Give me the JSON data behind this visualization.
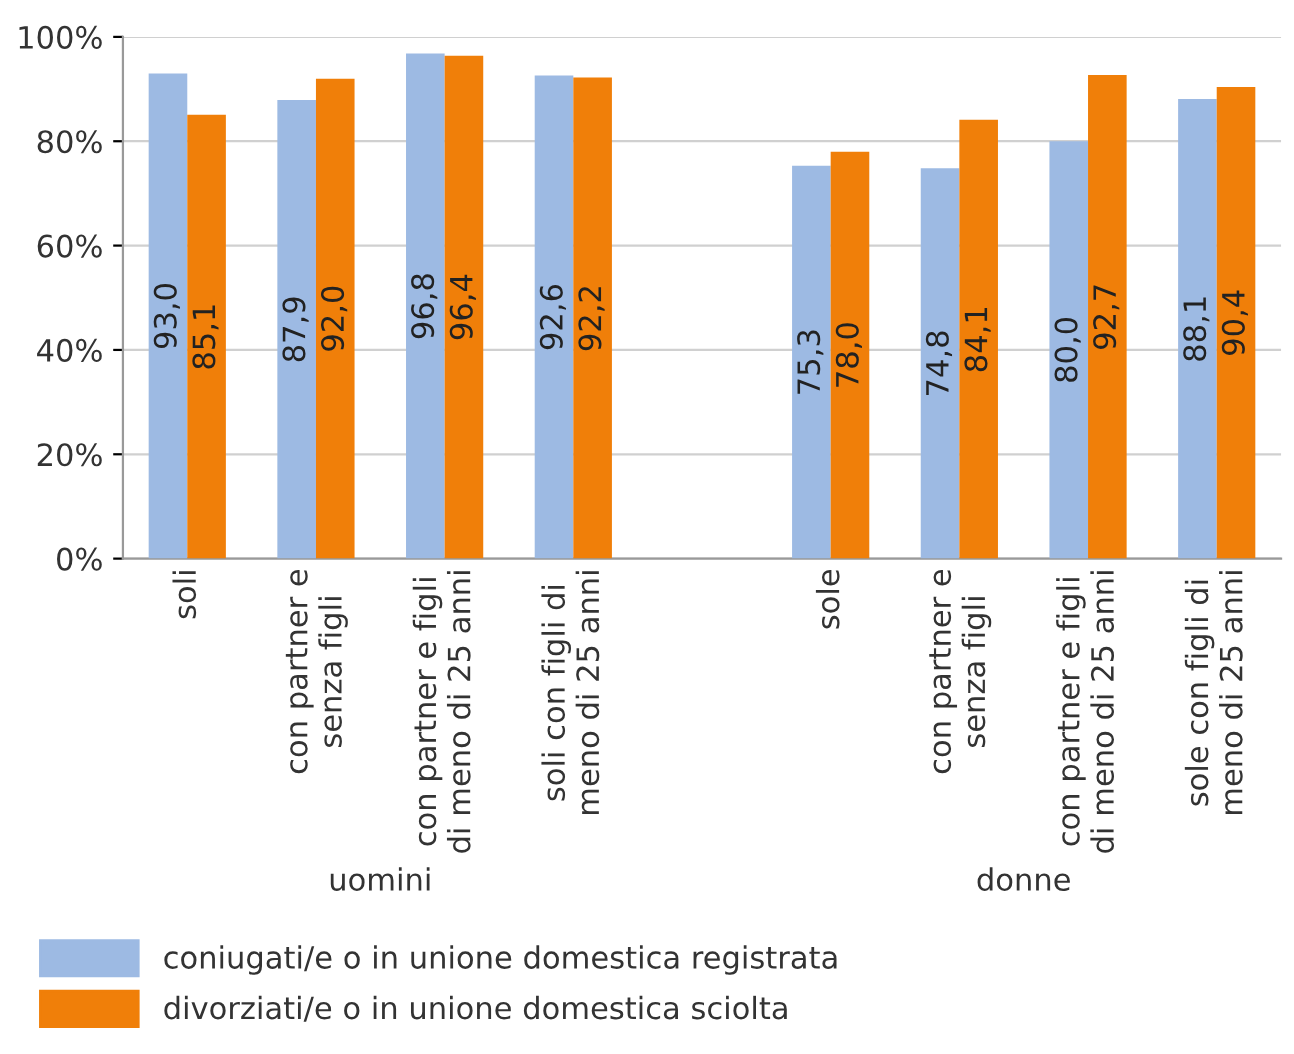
{
  "chart_data": {
    "type": "bar",
    "categories": [
      "soli",
      "con partner e\nsenza figli",
      "con partner e figli\ndi meno di 25 anni",
      "soli con figli di\nmeno di 25 anni",
      null,
      "sole",
      "con partner e\nsenza figli",
      "con partner e figli\ndi meno di 25 anni",
      "sole con figli di\nmeno di 25 anni"
    ],
    "series": [
      {
        "name": "coniugati/e o in unione domestica registrata",
        "color": "#9dbae3",
        "values": [
          93.0,
          87.9,
          96.8,
          92.6,
          null,
          75.3,
          74.8,
          80.0,
          88.1
        ],
        "value_labels": [
          "93,0",
          "87,9",
          "96,8",
          "92,6",
          null,
          "75,3",
          "74,8",
          "80,0",
          "88,1"
        ]
      },
      {
        "name": "divorziati/e o in unione domestica sciolta",
        "color": "#f07f09",
        "values": [
          85.1,
          92.0,
          96.4,
          92.2,
          null,
          78.0,
          84.1,
          92.7,
          90.4
        ],
        "value_labels": [
          "85,1",
          "92,0",
          "96,4",
          "92,2",
          null,
          "78,0",
          "84,1",
          "92,7",
          "90,4"
        ]
      }
    ],
    "annotations": [
      "uomini",
      "donne"
    ],
    "ylim": [
      0,
      100
    ],
    "yticks": [
      {
        "value": 0,
        "label": "0%"
      },
      {
        "value": 20,
        "label": "20%"
      },
      {
        "value": 40,
        "label": "40%"
      },
      {
        "value": 60,
        "label": "60%"
      },
      {
        "value": 80,
        "label": "80%"
      },
      {
        "value": 100,
        "label": "100%"
      }
    ],
    "grid": "y",
    "legend": "bottom"
  }
}
